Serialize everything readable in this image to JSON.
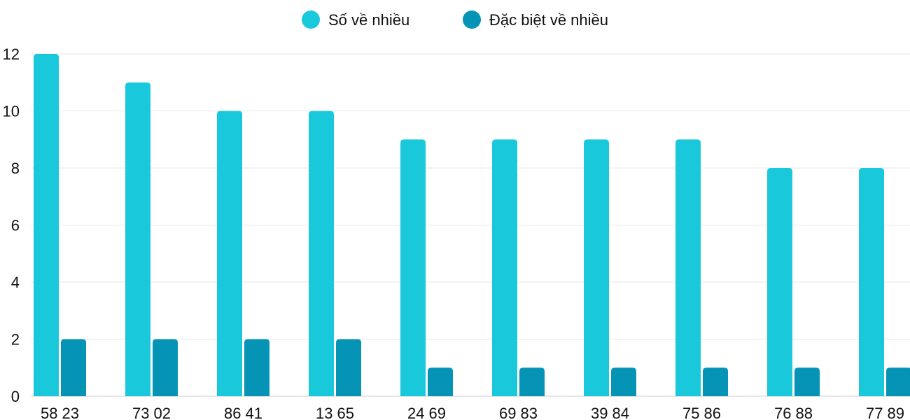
{
  "chart_data": {
    "type": "bar",
    "categories": [
      "58 23",
      "73 02",
      "86 41",
      "13 65",
      "24 69",
      "69 83",
      "39 84",
      "75 86",
      "76 88",
      "77 89"
    ],
    "series": [
      {
        "name": "Số về nhiều",
        "color": "#1ac8db",
        "values": [
          12,
          11,
          10,
          10,
          9,
          9,
          9,
          9,
          8,
          8
        ]
      },
      {
        "name": "Đặc biệt về nhiều",
        "color": "#0594b6",
        "values": [
          2,
          2,
          2,
          2,
          1,
          1,
          1,
          1,
          1,
          1
        ]
      }
    ],
    "ylim": [
      0,
      12
    ],
    "yticks": [
      "0",
      "2",
      "4",
      "6",
      "8",
      "10",
      "12"
    ],
    "grid": true,
    "legend": "top-center"
  }
}
